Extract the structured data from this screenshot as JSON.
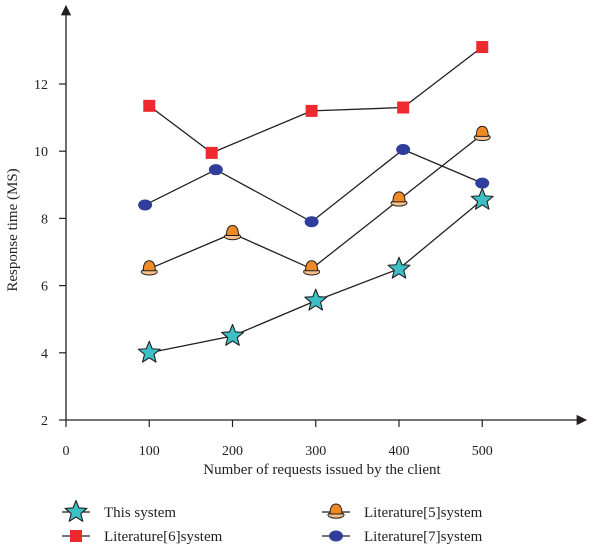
{
  "chart_data": {
    "type": "line",
    "title": "",
    "xlabel": "Number of requests issued by the client",
    "ylabel": "Response time (MS)",
    "xlim": [
      0,
      600
    ],
    "ylim": [
      2,
      14
    ],
    "x_ticks": [
      "0",
      "100",
      "200",
      "300",
      "400",
      "500"
    ],
    "y_ticks": [
      "2",
      "4",
      "6",
      "8",
      "10",
      "12"
    ],
    "grid": false,
    "legend_position": "bottom",
    "series": [
      {
        "name": "This system",
        "marker": "star",
        "color": "#3cc0c6",
        "points": [
          [
            100,
            4.0
          ],
          [
            200,
            4.5
          ],
          [
            300,
            5.55
          ],
          [
            400,
            6.5
          ],
          [
            500,
            8.55
          ]
        ]
      },
      {
        "name": "Literature[6]system",
        "marker": "square",
        "color": "#ee2a2e",
        "points": [
          [
            100,
            11.35
          ],
          [
            175,
            9.95
          ],
          [
            295,
            11.2
          ],
          [
            405,
            11.3
          ],
          [
            500,
            13.1
          ]
        ]
      },
      {
        "name": "Literature[5]system",
        "marker": "bell",
        "color": "#f08a24",
        "points": [
          [
            100,
            6.5
          ],
          [
            200,
            7.55
          ],
          [
            295,
            6.5
          ],
          [
            400,
            8.55
          ],
          [
            500,
            10.5
          ]
        ]
      },
      {
        "name": "Literature[7]system",
        "marker": "circle",
        "color": "#2e3e9a",
        "points": [
          [
            95,
            8.4
          ],
          [
            180,
            9.45
          ],
          [
            295,
            7.9
          ],
          [
            405,
            10.05
          ],
          [
            500,
            9.05
          ]
        ]
      }
    ]
  }
}
